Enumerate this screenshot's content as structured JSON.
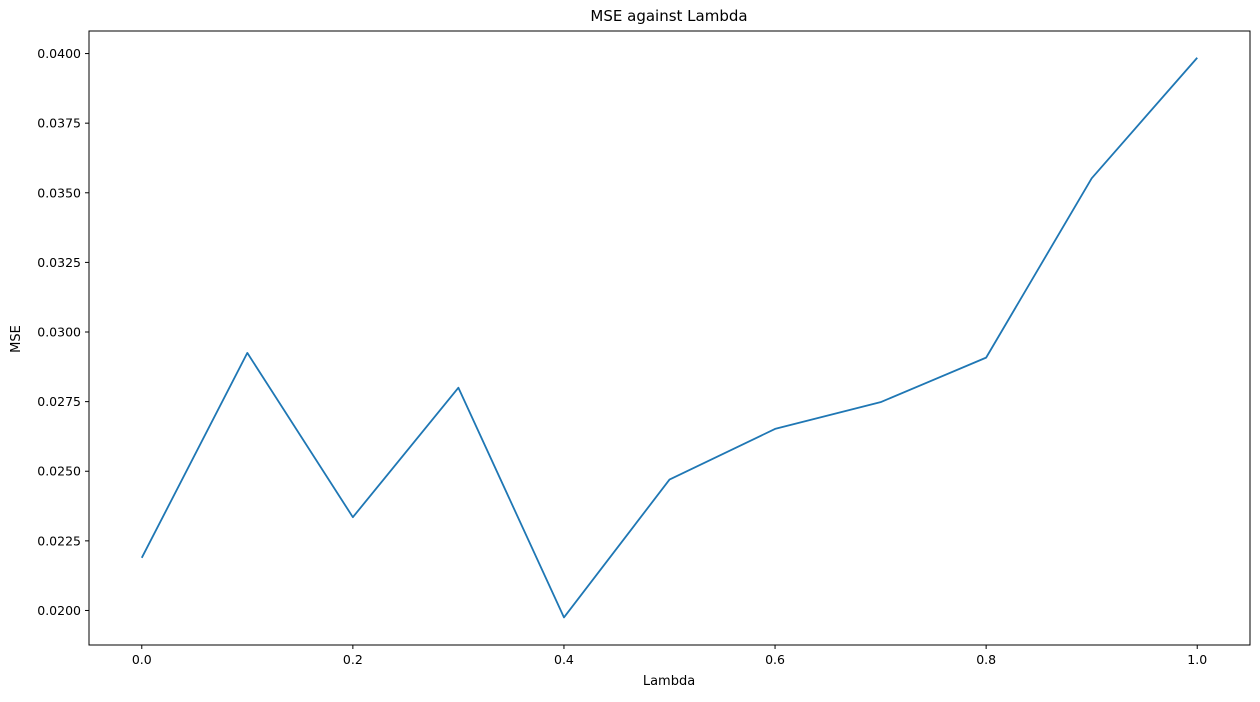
{
  "chart_data": {
    "type": "line",
    "title": "MSE against Lambda",
    "xlabel": "Lambda",
    "ylabel": "MSE",
    "xlim": [
      -0.05,
      1.05
    ],
    "ylim": [
      0.01876,
      0.04081
    ],
    "xticks": [
      0.0,
      0.2,
      0.4,
      0.6,
      0.8,
      1.0
    ],
    "xtick_labels": [
      "0.0",
      "0.2",
      "0.4",
      "0.6",
      "0.8",
      "1.0"
    ],
    "yticks": [
      0.02,
      0.0225,
      0.025,
      0.0275,
      0.03,
      0.0325,
      0.035,
      0.0375,
      0.04
    ],
    "ytick_labels": [
      "0.0200",
      "0.0225",
      "0.0250",
      "0.0275",
      "0.0300",
      "0.0325",
      "0.0350",
      "0.0375",
      "0.0400"
    ],
    "grid": false,
    "series": [
      {
        "color": "#1f77b4",
        "x": [
          0.0,
          0.1,
          0.2,
          0.3,
          0.4,
          0.5,
          0.6,
          0.7,
          0.8,
          0.9,
          1.0
        ],
        "y": [
          0.02189,
          0.02925,
          0.02335,
          0.028,
          0.01975,
          0.0247,
          0.02652,
          0.02748,
          0.02908,
          0.03552,
          0.03985
        ]
      }
    ]
  }
}
